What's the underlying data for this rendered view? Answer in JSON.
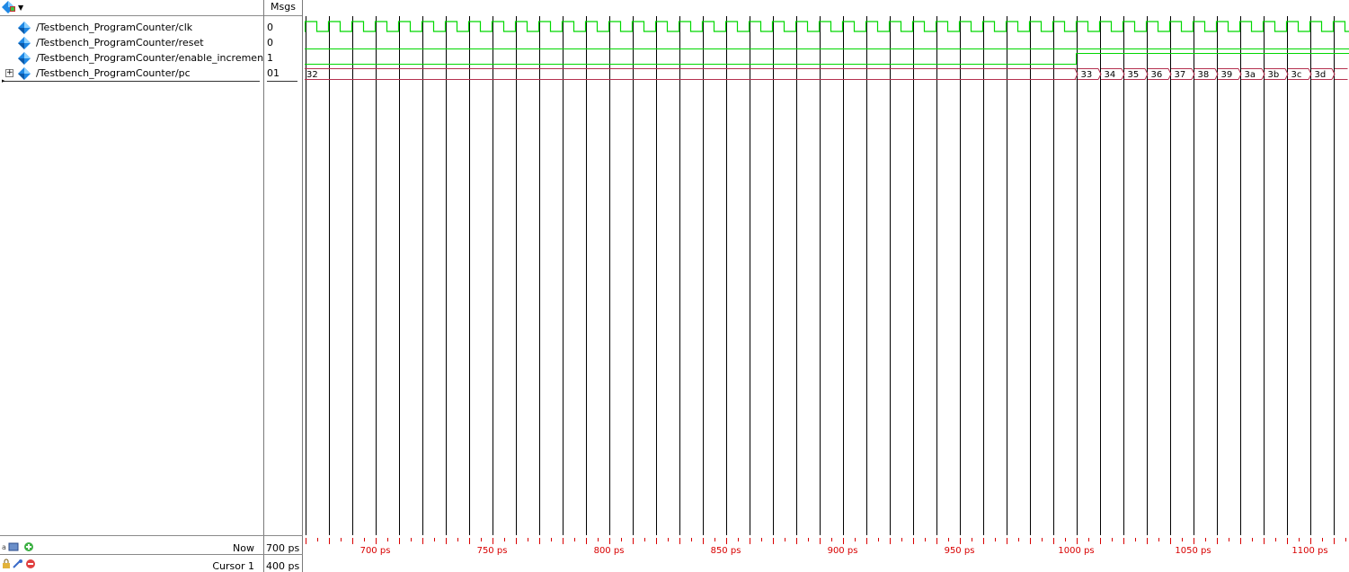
{
  "toolbar": {
    "menu_icon": "waveform-menu-icon"
  },
  "msgs_header": "Msgs",
  "signals": [
    {
      "name": "/Testbench_ProgramCounter/clk",
      "value": "0",
      "icon": "signal-diamond-icon"
    },
    {
      "name": "/Testbench_ProgramCounter/reset",
      "value": "0",
      "icon": "signal-diamond-icon"
    },
    {
      "name": "/Testbench_ProgramCounter/enable_increment",
      "value": "1",
      "icon": "signal-diamond-icon"
    },
    {
      "name": "/Testbench_ProgramCounter/pc",
      "value": "01",
      "icon": "signal-diamond-icon",
      "expandable": true,
      "expander_label": "+"
    }
  ],
  "pc_values": {
    "initial": "32",
    "after": [
      "33",
      "34",
      "35",
      "36",
      "37",
      "38",
      "39",
      "3a",
      "3b",
      "3c",
      "3d"
    ]
  },
  "status": {
    "now_label": "Now",
    "now_value": "700 ps",
    "cursor_label": "Cursor 1",
    "cursor_value": "400 ps"
  },
  "timeline": {
    "unit": "ps",
    "labels": [
      "700 ps",
      "750 ps",
      "800 ps",
      "850 ps",
      "900 ps",
      "950 ps",
      "1000 ps",
      "1050 ps",
      "1100 ps"
    ]
  },
  "colors": {
    "signal_green": "#00d800",
    "bus_red": "#b5304f",
    "axis_red": "#d80000",
    "grid": "#000000",
    "diamond_blue": "#1e88e5"
  }
}
